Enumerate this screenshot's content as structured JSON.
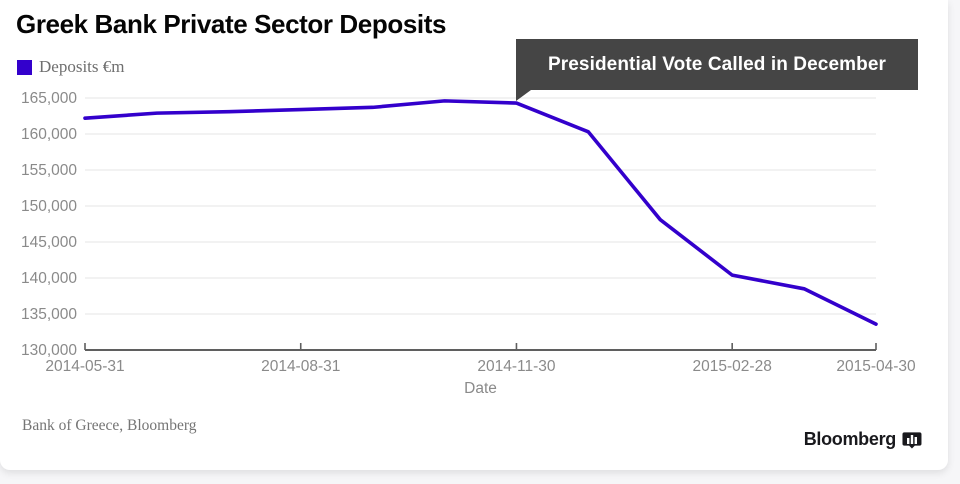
{
  "page": {
    "background": "#f6f6f8",
    "card_background": "#ffffff"
  },
  "header": {
    "title": "Greek Bank Private Sector Deposits"
  },
  "legend": {
    "label": "Deposits €m",
    "swatch_color": "#3300cc"
  },
  "annotation": {
    "label": "Presidential Vote Called in December",
    "background": "#454545",
    "text_color": "#ffffff"
  },
  "source": {
    "label": "Bank of Greece, Bloomberg"
  },
  "branding": {
    "wordmark": "Bloomberg",
    "icon": "bar-chart-badge-icon"
  },
  "chart_data": {
    "type": "line",
    "title": "Greek Bank Private Sector Deposits",
    "xlabel": "Date",
    "ylabel": "",
    "x": [
      "2014-05-31",
      "2014-06-30",
      "2014-07-31",
      "2014-08-31",
      "2014-09-30",
      "2014-10-31",
      "2014-11-30",
      "2014-12-31",
      "2015-01-31",
      "2015-02-28",
      "2015-03-31",
      "2015-04-30"
    ],
    "series": [
      {
        "name": "Deposits €m",
        "color": "#3300cc",
        "values": [
          162200,
          162900,
          163100,
          163400,
          163700,
          164600,
          164300,
          160300,
          148100,
          140400,
          138500,
          133600
        ]
      }
    ],
    "ylim": [
      130000,
      165000
    ],
    "y_tick_step": 5000,
    "x_tick_labels": [
      "2014-05-31",
      "2014-08-31",
      "2014-11-30",
      "2015-02-28",
      "2015-04-30"
    ],
    "grid": "horizontal",
    "legend_position": "top-left",
    "annotation_x": "2014-11-30",
    "colors": {
      "gridline": "#e9e9e9",
      "axis": "#5f5f5f",
      "tick_label": "#8a8a8a"
    }
  }
}
